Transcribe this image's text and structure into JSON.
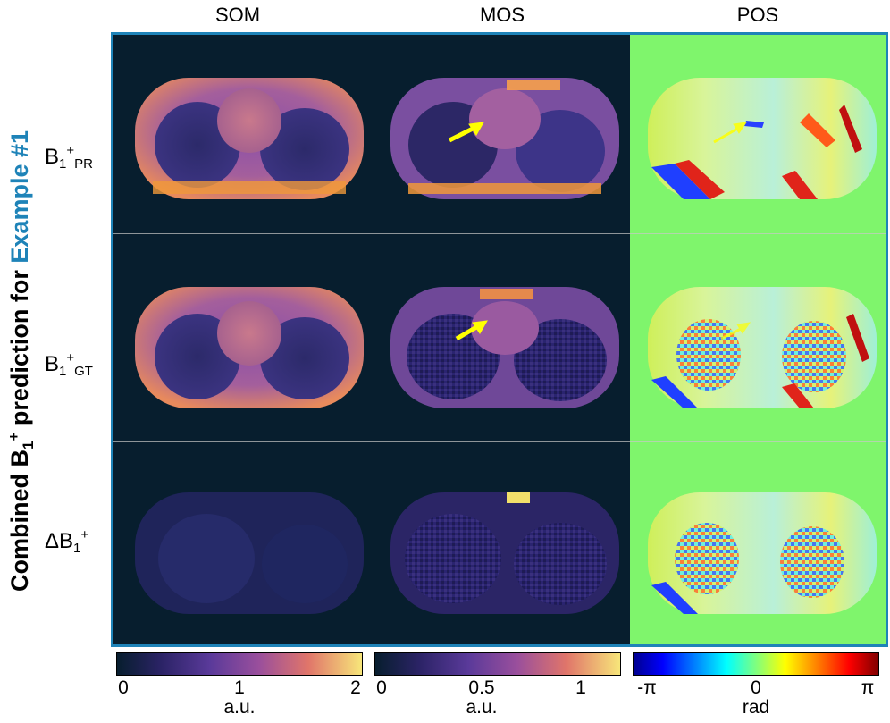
{
  "columns": {
    "som": "SOM",
    "mos": "MOS",
    "pos": "POS"
  },
  "title": {
    "prefix": "Combined B",
    "sub": "1",
    "sup": "+",
    "mid": " prediction for ",
    "accent": "Example #1",
    "accent_color": "#1e83b8"
  },
  "rows": [
    {
      "main": "B",
      "sub1": "1",
      "sup": "+",
      "sub2": "PR"
    },
    {
      "main": "B",
      "sub1": "1",
      "sup": "+",
      "sub2": "GT"
    },
    {
      "main": "ΔB",
      "sub1": "1",
      "sup": "+",
      "sub2": ""
    }
  ],
  "colorbars": [
    {
      "ticks": [
        "0",
        "1",
        "2"
      ],
      "unit": "a.u.",
      "colormap": "plasma"
    },
    {
      "ticks": [
        "0",
        "0.5",
        "1"
      ],
      "unit": "a.u.",
      "colormap": "plasma"
    },
    {
      "ticks": [
        "-π",
        "0",
        "π"
      ],
      "unit": "rad",
      "colormap": "jet"
    }
  ],
  "annotations": {
    "arrow_color": "#ffff00"
  },
  "colors": {
    "panel_border": "#1e83b8",
    "magnitude_background": "#071e2e",
    "phase_background": "#7ff56c"
  }
}
